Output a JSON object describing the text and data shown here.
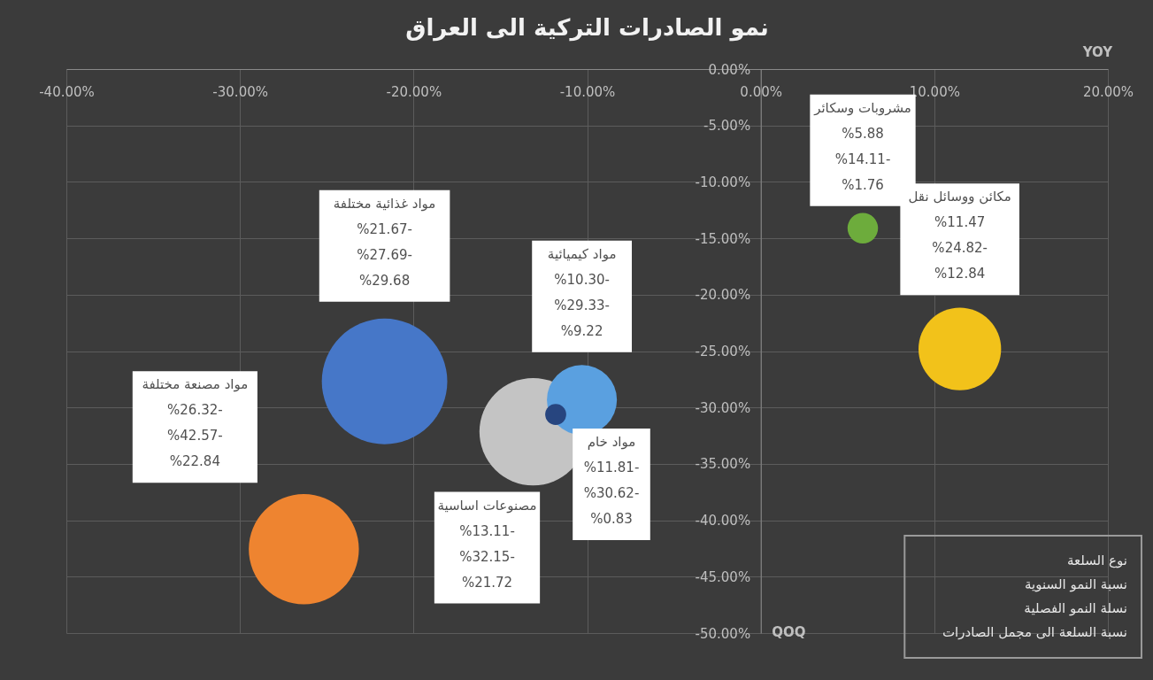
{
  "chart_data": {
    "type": "bubble",
    "title": "نمو الصادرات التركية الى العراق",
    "xlabel": "YOY",
    "ylabel": "QOQ",
    "xlim": [
      -40,
      20
    ],
    "ylim": [
      -50,
      0
    ],
    "xticks": [
      {
        "value": -40,
        "label": "-40.00%"
      },
      {
        "value": -30,
        "label": "-30.00%"
      },
      {
        "value": -20,
        "label": "-20.00%"
      },
      {
        "value": -10,
        "label": "-10.00%"
      },
      {
        "value": 0,
        "label": "0.00%"
      },
      {
        "value": 10,
        "label": "10.00%"
      },
      {
        "value": 20,
        "label": "20.00%"
      }
    ],
    "yticks": [
      {
        "value": 0,
        "label": "0.00%"
      },
      {
        "value": -5,
        "label": "-5.00%"
      },
      {
        "value": -10,
        "label": "-10.00%"
      },
      {
        "value": -15,
        "label": "-15.00%"
      },
      {
        "value": -20,
        "label": "-20.00%"
      },
      {
        "value": -25,
        "label": "-25.00%"
      },
      {
        "value": -30,
        "label": "-30.00%"
      },
      {
        "value": -35,
        "label": "-35.00%"
      },
      {
        "value": -40,
        "label": "-40.00%"
      },
      {
        "value": -45,
        "label": "-45.00%"
      },
      {
        "value": -50,
        "label": "-50.00%"
      }
    ],
    "grid": true,
    "series": [
      {
        "color": "#4677c8",
        "x": [
          -21.67
        ],
        "values": [
          -27.69
        ],
        "sizes": [
          1
        ],
        "value_labels": [
          "مواد غذائية مختلفة\n%21.67-\n%27.69-\n%29.68"
        ]
      },
      {
        "color": "#ee8430",
        "x": [
          -26.32
        ],
        "values": [
          -42.57
        ],
        "sizes": [
          0.77
        ],
        "value_labels": [
          "مواد مصنعة مختلفة\n%26.32-\n%42.57-\n%22.84"
        ]
      },
      {
        "color": "#c4c4c4",
        "x": [
          -13.11
        ],
        "values": [
          -32.15
        ],
        "sizes": [
          0.732
        ],
        "value_labels": [
          "مصنوعات اساسية\n%13.11-\n%32.15-\n%21.72"
        ]
      },
      {
        "color": "#5aa0e0",
        "x": [
          -10.3
        ],
        "values": [
          -29.33
        ],
        "sizes": [
          0.311
        ],
        "value_labels": [
          "مواد كيميائية\n%10.30-\n%29.33-\n%9.22"
        ]
      },
      {
        "color": "#27457f",
        "x": [
          -11.81
        ],
        "values": [
          -30.62
        ],
        "sizes": [
          0.028
        ],
        "value_labels": [
          "مواد خام\n%11.81-\n%30.62-\n%0.83"
        ]
      },
      {
        "color": "#6dac3c",
        "x": [
          5.88
        ],
        "values": [
          -14.11
        ],
        "sizes": [
          0.059
        ],
        "value_labels": [
          "مشروبات وسكائر\n%5.88\n%14.11-\n%1.76"
        ]
      },
      {
        "color": "#f2c21a",
        "x": [
          11.47
        ],
        "values": [
          -24.82
        ],
        "sizes": [
          0.433
        ],
        "value_labels": [
          "مكائن ووسائل نقل\n%11.47\n%24.82-\n%12.84"
        ]
      }
    ],
    "annotations": [
      "نوع السلعة",
      "نسبة النمو السنوية",
      "نسلة النمو الفصلية",
      "نسبة السلعة الى مجمل الصادرات"
    ]
  }
}
